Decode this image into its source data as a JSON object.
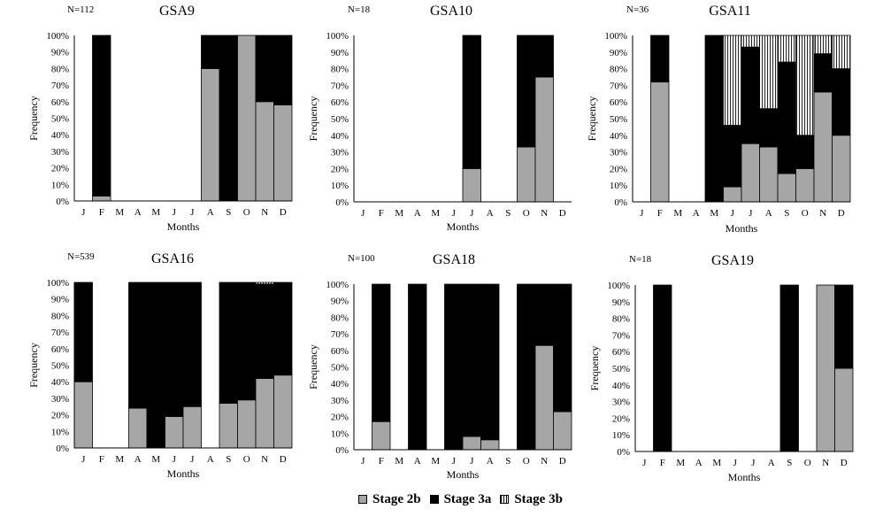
{
  "colors": {
    "stage_2b": "#a6a6a6",
    "stage_3a": "#000000",
    "stage_3b_bg": "#ffffff",
    "stage_3b_hatch": "#000000"
  },
  "legend": [
    {
      "key": "stage_2b",
      "label": "Stage 2b"
    },
    {
      "key": "stage_3a",
      "label": "Stage 3a"
    },
    {
      "key": "stage_3b",
      "label": "Stage 3b"
    }
  ],
  "chart_data": [
    {
      "type": "bar",
      "stacked": true,
      "title": "GSA9",
      "n_label": "N=112",
      "xlabel": "Months",
      "ylabel": "Frequency",
      "categories": [
        "J",
        "F",
        "M",
        "A",
        "M",
        "J",
        "J",
        "A",
        "S",
        "O",
        "N",
        "D"
      ],
      "yticks": [
        "0%",
        "10%",
        "20%",
        "30%",
        "40%",
        "50%",
        "60%",
        "70%",
        "80%",
        "90%",
        "100%"
      ],
      "ylim": [
        0,
        100
      ],
      "series": [
        {
          "key": "stage_2b",
          "name": "Stage 2b",
          "values": [
            null,
            3,
            null,
            null,
            null,
            null,
            null,
            80,
            0,
            100,
            60,
            58
          ]
        },
        {
          "key": "stage_3a",
          "name": "Stage 3a",
          "values": [
            null,
            97,
            null,
            null,
            null,
            null,
            null,
            20,
            100,
            0,
            40,
            42
          ]
        },
        {
          "key": "stage_3b",
          "name": "Stage 3b",
          "values": [
            null,
            0,
            null,
            null,
            null,
            null,
            null,
            0,
            0,
            0,
            0,
            0
          ]
        }
      ]
    },
    {
      "type": "bar",
      "stacked": true,
      "title": "GSA10",
      "n_label": "N=18",
      "xlabel": "Months",
      "ylabel": "Frequency",
      "categories": [
        "J",
        "F",
        "M",
        "A",
        "M",
        "J",
        "J",
        "A",
        "S",
        "O",
        "N",
        "D"
      ],
      "yticks": [
        "0%",
        "10%",
        "20%",
        "30%",
        "40%",
        "50%",
        "60%",
        "70%",
        "80%",
        "90%",
        "100%"
      ],
      "ylim": [
        0,
        100
      ],
      "series": [
        {
          "key": "stage_2b",
          "name": "Stage 2b",
          "values": [
            null,
            null,
            null,
            null,
            null,
            null,
            20,
            null,
            null,
            33,
            75,
            null
          ]
        },
        {
          "key": "stage_3a",
          "name": "Stage 3a",
          "values": [
            null,
            null,
            null,
            null,
            null,
            null,
            80,
            null,
            null,
            67,
            25,
            null
          ]
        },
        {
          "key": "stage_3b",
          "name": "Stage 3b",
          "values": [
            null,
            null,
            null,
            null,
            null,
            null,
            0,
            null,
            null,
            0,
            0,
            null
          ]
        }
      ]
    },
    {
      "type": "bar",
      "stacked": true,
      "title": "GSA11",
      "n_label": "N=36",
      "xlabel": "Months",
      "ylabel": "Frequency",
      "categories": [
        "J",
        "F",
        "M",
        "A",
        "M",
        "J",
        "J",
        "A",
        "S",
        "O",
        "N",
        "D"
      ],
      "yticks": [
        "0%",
        "10%",
        "20%",
        "30%",
        "40%",
        "50%",
        "60%",
        "70%",
        "80%",
        "90%",
        "100%"
      ],
      "ylim": [
        0,
        100
      ],
      "series": [
        {
          "key": "stage_2b",
          "name": "Stage 2b",
          "values": [
            null,
            72,
            null,
            null,
            0,
            9,
            35,
            33,
            17,
            20,
            66,
            40
          ]
        },
        {
          "key": "stage_3a",
          "name": "Stage 3a",
          "values": [
            null,
            28,
            null,
            null,
            100,
            37,
            58,
            23,
            67,
            20,
            23,
            40
          ]
        },
        {
          "key": "stage_3b",
          "name": "Stage 3b",
          "values": [
            null,
            0,
            null,
            null,
            0,
            54,
            7,
            44,
            16,
            60,
            11,
            20
          ]
        }
      ]
    },
    {
      "type": "bar",
      "stacked": true,
      "title": "GSA16",
      "n_label": "N=539",
      "xlabel": "Months",
      "ylabel": "Frequency",
      "categories": [
        "J",
        "F",
        "M",
        "A",
        "M",
        "J",
        "J",
        "A",
        "S",
        "O",
        "N",
        "D"
      ],
      "yticks": [
        "0%",
        "10%",
        "20%",
        "30%",
        "40%",
        "50%",
        "60%",
        "70%",
        "80%",
        "90%",
        "100%"
      ],
      "ylim": [
        0,
        100
      ],
      "series": [
        {
          "key": "stage_2b",
          "name": "Stage 2b",
          "values": [
            40,
            null,
            null,
            24,
            0,
            19,
            25,
            null,
            27,
            29,
            42,
            44
          ]
        },
        {
          "key": "stage_3a",
          "name": "Stage 3a",
          "values": [
            60,
            null,
            null,
            76,
            100,
            81,
            75,
            null,
            73,
            71,
            57,
            56
          ]
        },
        {
          "key": "stage_3b",
          "name": "Stage 3b",
          "values": [
            0,
            null,
            null,
            0,
            0,
            0,
            0,
            null,
            0,
            0,
            1,
            0
          ]
        }
      ]
    },
    {
      "type": "bar",
      "stacked": true,
      "title": "GSA18",
      "n_label": "N=100",
      "xlabel": "Months",
      "ylabel": "Frequency",
      "categories": [
        "J",
        "F",
        "M",
        "A",
        "M",
        "J",
        "J",
        "A",
        "S",
        "O",
        "N",
        "D"
      ],
      "yticks": [
        "0%",
        "10%",
        "20%",
        "30%",
        "40%",
        "50%",
        "60%",
        "70%",
        "80%",
        "90%",
        "100%"
      ],
      "ylim": [
        0,
        100
      ],
      "series": [
        {
          "key": "stage_2b",
          "name": "Stage 2b",
          "values": [
            null,
            17,
            null,
            0,
            null,
            0,
            8,
            6,
            null,
            0,
            63,
            23
          ]
        },
        {
          "key": "stage_3a",
          "name": "Stage 3a",
          "values": [
            null,
            83,
            null,
            100,
            null,
            100,
            92,
            94,
            null,
            100,
            37,
            77
          ]
        },
        {
          "key": "stage_3b",
          "name": "Stage 3b",
          "values": [
            null,
            0,
            null,
            0,
            null,
            0,
            0,
            0,
            null,
            0,
            0,
            0
          ]
        }
      ]
    },
    {
      "type": "bar",
      "stacked": true,
      "title": "GSA19",
      "n_label": "N=18",
      "xlabel": "Months",
      "ylabel": "Frequency",
      "categories": [
        "J",
        "F",
        "M",
        "A",
        "M",
        "J",
        "J",
        "A",
        "S",
        "O",
        "N",
        "D"
      ],
      "yticks": [
        "0%",
        "10%",
        "20%",
        "30%",
        "40%",
        "50%",
        "60%",
        "70%",
        "80%",
        "90%",
        "100%"
      ],
      "ylim": [
        0,
        100
      ],
      "series": [
        {
          "key": "stage_2b",
          "name": "Stage 2b",
          "values": [
            null,
            0,
            null,
            null,
            null,
            null,
            null,
            null,
            0,
            null,
            100,
            50
          ]
        },
        {
          "key": "stage_3a",
          "name": "Stage 3a",
          "values": [
            null,
            100,
            null,
            null,
            null,
            null,
            null,
            null,
            100,
            null,
            0,
            50
          ]
        },
        {
          "key": "stage_3b",
          "name": "Stage 3b",
          "values": [
            null,
            0,
            null,
            null,
            null,
            null,
            null,
            null,
            0,
            null,
            0,
            0
          ]
        }
      ]
    }
  ]
}
